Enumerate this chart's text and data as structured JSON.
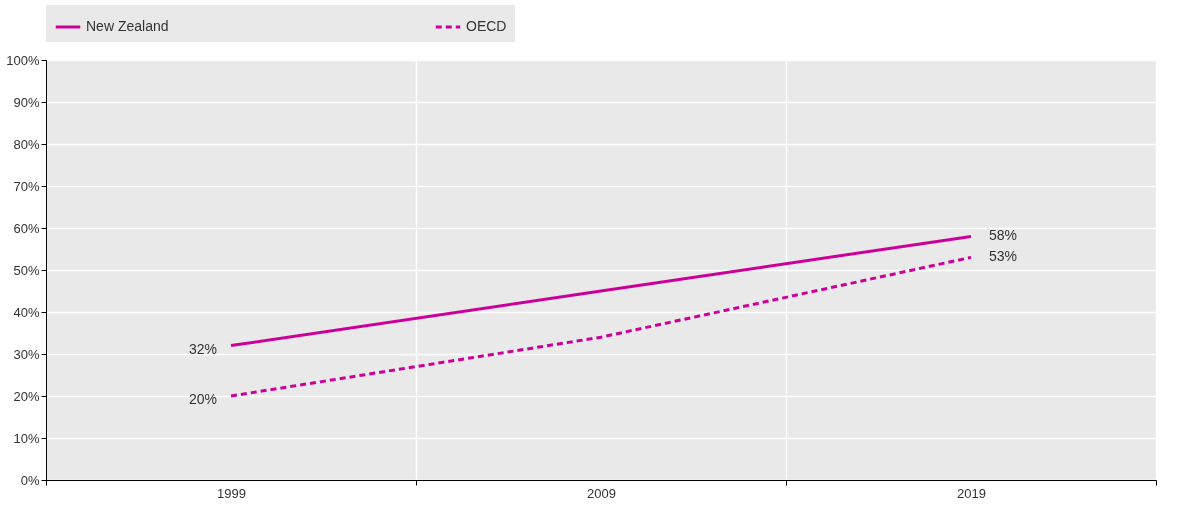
{
  "chart_data": {
    "type": "line",
    "categories": [
      "1999",
      "2009",
      "2019"
    ],
    "series": [
      {
        "name": "New Zealand",
        "color": "#cc0099",
        "line_style": "solid",
        "values": [
          32,
          45,
          58
        ],
        "value_labels": [
          "32%",
          null,
          "58%"
        ]
      },
      {
        "name": "OECD",
        "color": "#cc0099",
        "line_style": "dashed",
        "values": [
          20,
          34,
          53
        ],
        "value_labels": [
          "20%",
          null,
          "53%"
        ]
      }
    ],
    "ylim": [
      0,
      100
    ],
    "yticks": [
      {
        "value": 0,
        "label": "0%"
      },
      {
        "value": 10,
        "label": "10%"
      },
      {
        "value": 20,
        "label": "20%"
      },
      {
        "value": 30,
        "label": "30%"
      },
      {
        "value": 40,
        "label": "40%"
      },
      {
        "value": 50,
        "label": "50%"
      },
      {
        "value": 60,
        "label": "60%"
      },
      {
        "value": 70,
        "label": "70%"
      },
      {
        "value": 80,
        "label": "80%"
      },
      {
        "value": 90,
        "label": "90%"
      },
      {
        "value": 100,
        "label": "100%"
      }
    ],
    "grid": true,
    "legend": "top",
    "marker": "none"
  }
}
